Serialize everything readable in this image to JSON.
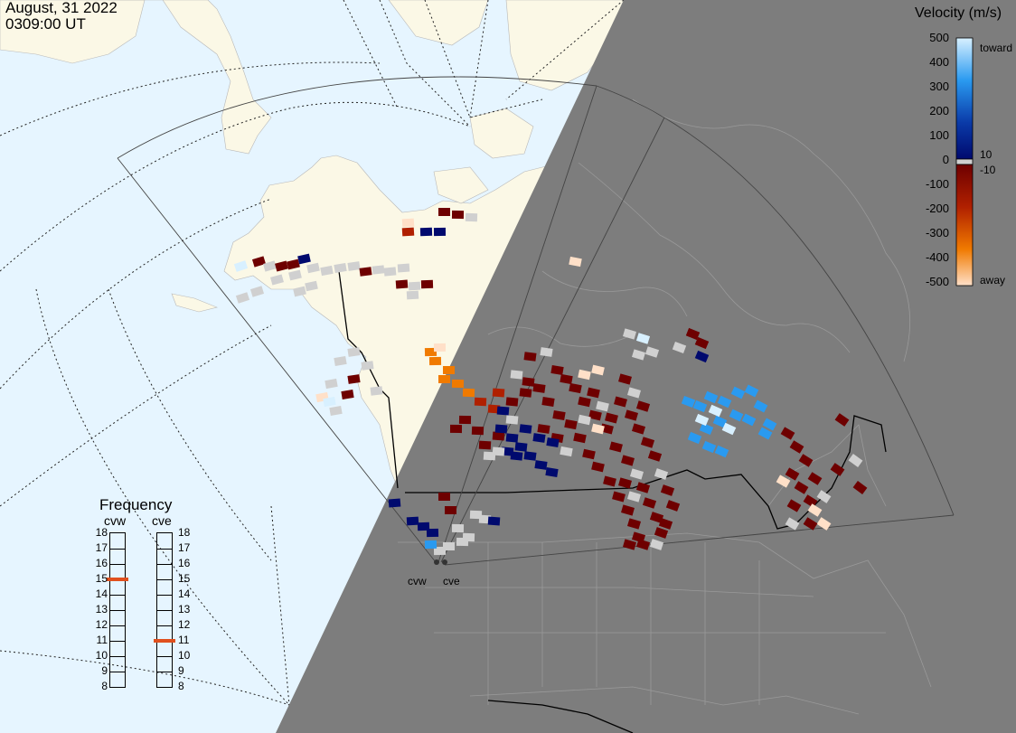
{
  "header": {
    "date": "August, 31 2022",
    "time": "0309:00 UT"
  },
  "colorbar": {
    "title": "Velocity (m/s)",
    "ticks": [
      "500",
      "400",
      "300",
      "200",
      "100",
      "0",
      "-100",
      "-200",
      "-300",
      "-400",
      "-500"
    ],
    "inner_pos": "10",
    "inner_neg": "-10",
    "end_toward": "toward",
    "end_away": "away",
    "colors": {
      "toward_light": "#d8f0ff",
      "toward_mid": "#2a9af0",
      "toward_dark": "#0a3aa8",
      "toward_deep": "#000a6e",
      "away_deep": "#6e0000",
      "away_mid": "#b02000",
      "away_orange": "#f07a00",
      "away_light": "#ffe0c8",
      "gray_zero": "#d0d0d0"
    }
  },
  "frequency_panel": {
    "title": "Frequency",
    "radars": [
      {
        "name": "cvw",
        "frequency_mhz": 15
      },
      {
        "name": "cve",
        "frequency_mhz": 11
      }
    ],
    "scale": [
      "18",
      "17",
      "16",
      "15",
      "14",
      "13",
      "12",
      "11",
      "10",
      "9",
      "8"
    ],
    "marker_color": "#e0501e"
  },
  "radar_sites": [
    {
      "name": "cvw"
    },
    {
      "name": "cve"
    }
  ],
  "map": {
    "ocean_color": "#e6f5ff",
    "land_color": "#fbf8e6",
    "night_color": "#7d7d7d",
    "night_land_outline": "#9a9a9a"
  }
}
